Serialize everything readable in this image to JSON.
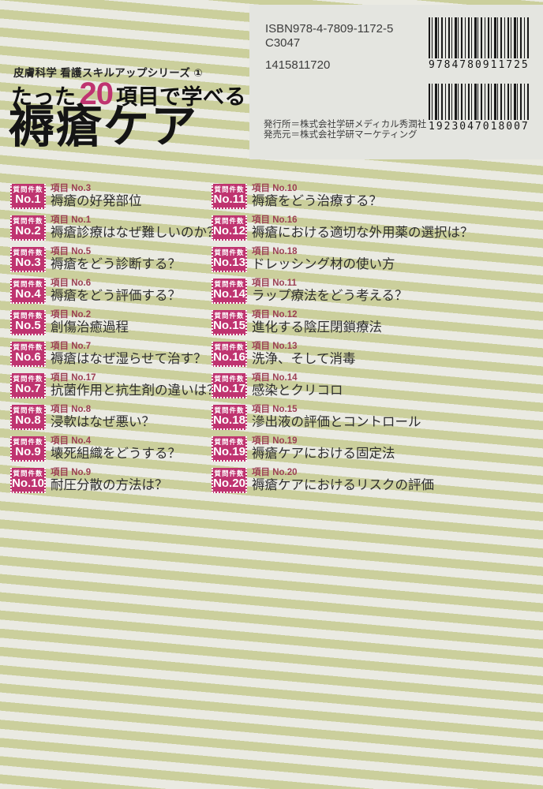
{
  "title_block": {
    "series": "皮膚科学 看護スキルアップシリーズ ①",
    "tagline_prefix": "たった",
    "tagline_number": "20",
    "tagline_suffix": "項目で学べる",
    "main_title": "褥瘡ケア"
  },
  "info_panel": {
    "isbn": "ISBN978-4-7809-1172-5",
    "c_code": "C3047",
    "book_code": "1415811720",
    "publisher_line1": "発行所＝株式会社学研メディカル秀潤社",
    "publisher_line2": "発売元＝株式会社学研マーケティング",
    "barcode1_digits": "9784780911725",
    "barcode2_digits": "1923047018007"
  },
  "badge_label": "質問件数",
  "items": [
    {
      "q_no": "No.1",
      "item_no": "項目 No.3",
      "title": "褥瘡の好発部位"
    },
    {
      "q_no": "No.2",
      "item_no": "項目 No.1",
      "title": "褥瘡診療はなぜ難しいのか？"
    },
    {
      "q_no": "No.3",
      "item_no": "項目 No.5",
      "title": "褥瘡をどう診断する？"
    },
    {
      "q_no": "No.4",
      "item_no": "項目 No.6",
      "title": "褥瘡をどう評価する？"
    },
    {
      "q_no": "No.5",
      "item_no": "項目 No.2",
      "title": "創傷治癒過程"
    },
    {
      "q_no": "No.6",
      "item_no": "項目 No.7",
      "title": "褥瘡はなぜ湿らせて治す？"
    },
    {
      "q_no": "No.7",
      "item_no": "項目 No.17",
      "title": "抗菌作用と抗生剤の違いは？"
    },
    {
      "q_no": "No.8",
      "item_no": "項目 No.8",
      "title": "浸軟はなぜ悪い？"
    },
    {
      "q_no": "No.9",
      "item_no": "項目 No.4",
      "title": "壊死組織をどうする？"
    },
    {
      "q_no": "No.10",
      "item_no": "項目 No.9",
      "title": "耐圧分散の方法は？"
    },
    {
      "q_no": "No.11",
      "item_no": "項目 No.10",
      "title": "褥瘡をどう治療する？"
    },
    {
      "q_no": "No.12",
      "item_no": "項目 No.16",
      "title": "褥瘡における適切な外用薬の選択は？"
    },
    {
      "q_no": "No.13",
      "item_no": "項目 No.18",
      "title": "ドレッシング材の使い方"
    },
    {
      "q_no": "No.14",
      "item_no": "項目 No.11",
      "title": "ラップ療法をどう考える？"
    },
    {
      "q_no": "No.15",
      "item_no": "項目 No.12",
      "title": "進化する陰圧閉鎖療法"
    },
    {
      "q_no": "No.16",
      "item_no": "項目 No.13",
      "title": "洗浄、そして消毒"
    },
    {
      "q_no": "No.17",
      "item_no": "項目 No.14",
      "title": "感染とクリコロ"
    },
    {
      "q_no": "No.18",
      "item_no": "項目 No.15",
      "title": "滲出液の評価とコントロール"
    },
    {
      "q_no": "No.19",
      "item_no": "項目 No.19",
      "title": "褥瘡ケアにおける固定法"
    },
    {
      "q_no": "No.20",
      "item_no": "項目 No.20",
      "title": "褥瘡ケアにおけるリスクの評価"
    }
  ],
  "colors": {
    "accent_magenta": "#bf3470",
    "stripe_olive": "#cbcf9c",
    "stripe_cream": "#eaeae2",
    "item_label_red": "#9c4054",
    "panel_bg": "#e4e5e0"
  }
}
